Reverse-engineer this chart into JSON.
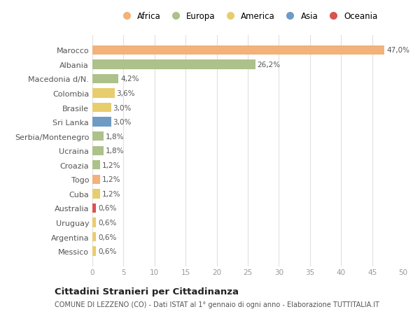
{
  "title": "Cittadini Stranieri per Cittadinanza",
  "subtitle": "COMUNE DI LEZZENO (CO) - Dati ISTAT al 1° gennaio di ogni anno - Elaborazione TUTTITALIA.IT",
  "categories": [
    "Marocco",
    "Albania",
    "Macedonia d/N.",
    "Colombia",
    "Brasile",
    "Sri Lanka",
    "Serbia/Montenegro",
    "Ucraina",
    "Croazia",
    "Togo",
    "Cuba",
    "Australia",
    "Uruguay",
    "Argentina",
    "Messico"
  ],
  "values": [
    47.0,
    26.2,
    4.2,
    3.6,
    3.0,
    3.0,
    1.8,
    1.8,
    1.2,
    1.2,
    1.2,
    0.6,
    0.6,
    0.6,
    0.6
  ],
  "labels": [
    "47,0%",
    "26,2%",
    "4,2%",
    "3,6%",
    "3,0%",
    "3,0%",
    "1,8%",
    "1,8%",
    "1,2%",
    "1,2%",
    "1,2%",
    "0,6%",
    "0,6%",
    "0,6%",
    "0,6%"
  ],
  "colors": [
    "#f2b27a",
    "#adc18a",
    "#adc18a",
    "#e8cd6e",
    "#e8cd6e",
    "#6e9bc4",
    "#adc18a",
    "#adc18a",
    "#adc18a",
    "#f2b27a",
    "#e8cd6e",
    "#d9534f",
    "#e8cd6e",
    "#e8cd6e",
    "#e8cd6e"
  ],
  "legend_items": [
    "Africa",
    "Europa",
    "America",
    "Asia",
    "Oceania"
  ],
  "legend_colors": [
    "#f2b27a",
    "#adc18a",
    "#e8cd6e",
    "#6e9bc4",
    "#d9534f"
  ],
  "xlim": [
    0,
    50
  ],
  "xticks": [
    0,
    5,
    10,
    15,
    20,
    25,
    30,
    35,
    40,
    45,
    50
  ],
  "background_color": "#ffffff",
  "grid_color": "#e0e0e0",
  "label_color": "#555555",
  "tick_color": "#999999"
}
